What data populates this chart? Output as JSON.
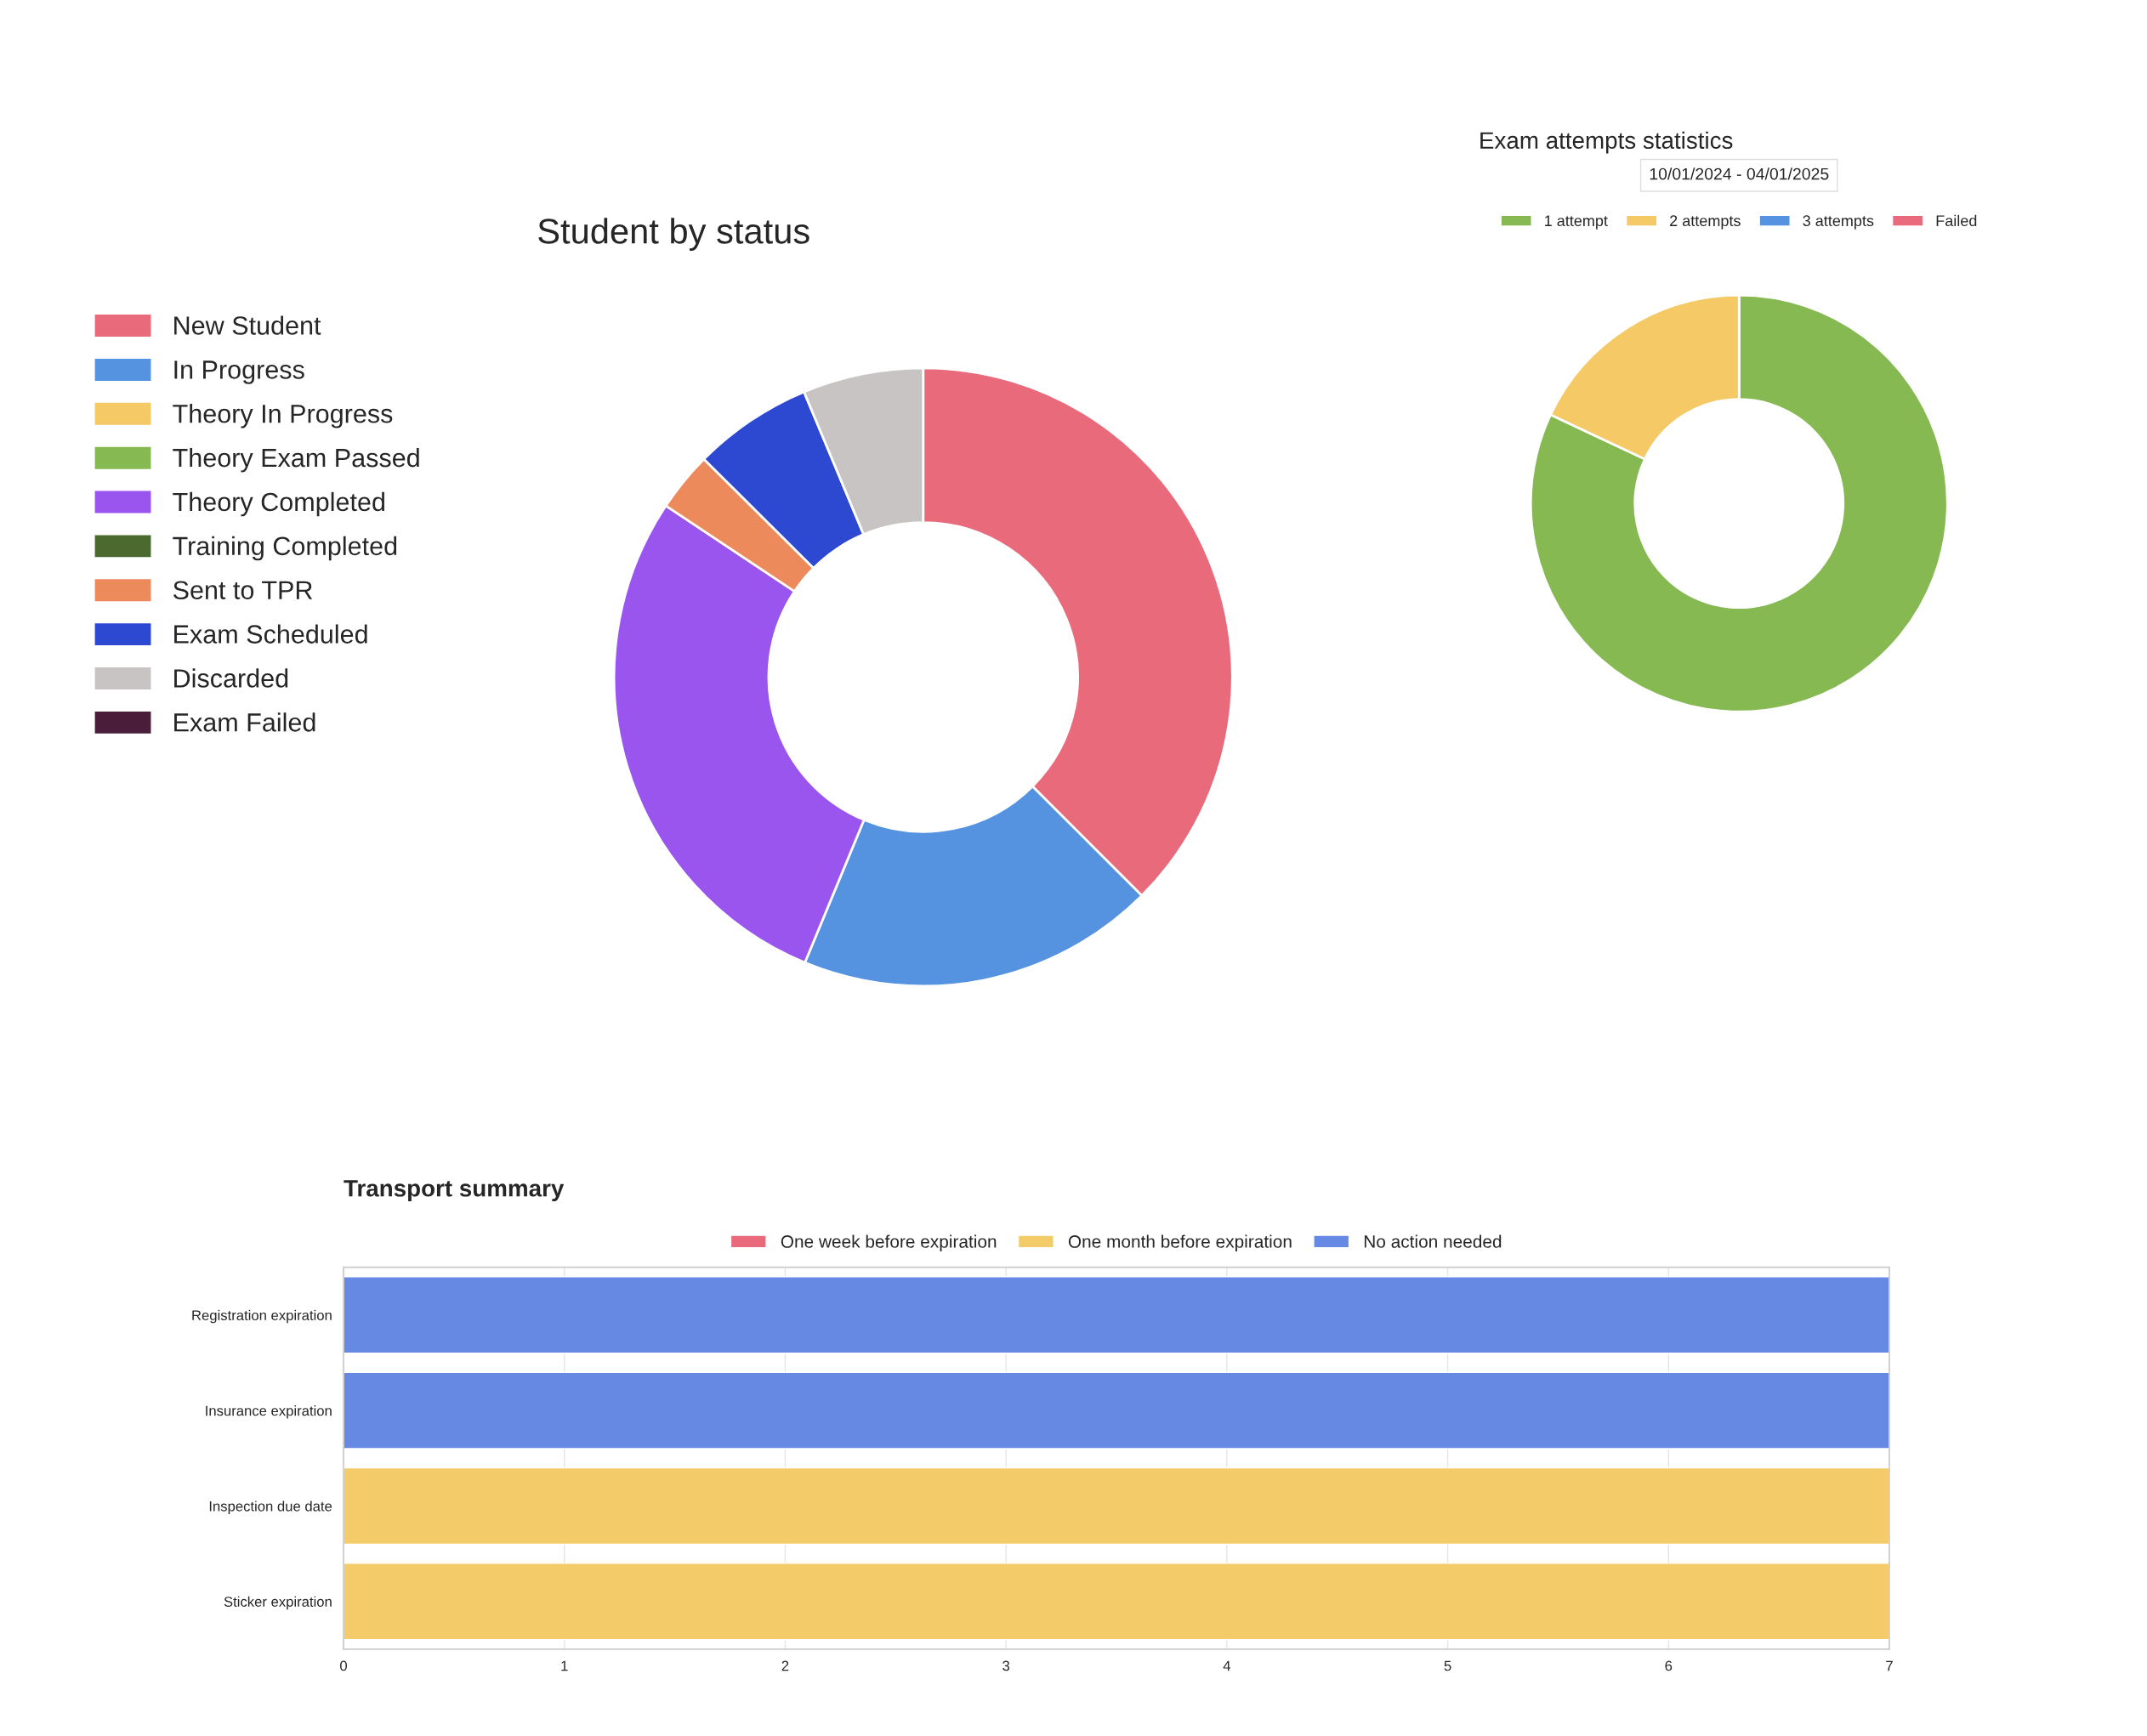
{
  "chart_data": [
    {
      "type": "donut",
      "title": "Student by status",
      "legend": "left",
      "categories": [
        "New Student",
        "In Progress",
        "Theory In Progress",
        "Theory Exam Passed",
        "Theory Completed",
        "Training Completed",
        "Sent to TPR",
        "Exam Scheduled",
        "Discarded",
        "Exam Failed"
      ],
      "values": [
        37.5,
        18.75,
        null,
        null,
        28.1,
        null,
        3.1,
        6.25,
        6.3,
        null
      ],
      "colors": [
        "#e96a7b",
        "#5593e0",
        "#f4c966",
        "#86b951",
        "#9b55ef",
        "#4a6a2f",
        "#ec8a5c",
        "#2d48d1",
        "#c8c4c4",
        "#4a1e3a"
      ]
    },
    {
      "type": "donut",
      "title": "Exam attempts statistics",
      "subtitle": "10/01/2024 - 04/01/2025",
      "legend": "top",
      "categories": [
        "1 attempt",
        "2 attempts",
        "3 attempts",
        "Failed"
      ],
      "values": [
        82,
        18,
        null,
        null
      ],
      "colors": [
        "#86b951",
        "#f4c966",
        "#5593e0",
        "#e96a7b"
      ]
    },
    {
      "type": "bar",
      "title": "Transport summary",
      "orientation": "horizontal",
      "legend": "top",
      "grid": true,
      "categories": [
        "Registration expiration",
        "Insurance expiration",
        "Inspection due date",
        "Sticker expiration"
      ],
      "series": [
        {
          "name": "One week before expiration",
          "color": "#e96a7b",
          "values": [
            null,
            null,
            null,
            null
          ]
        },
        {
          "name": "One month before expiration",
          "color": "#f3cb68",
          "values": [
            null,
            null,
            7,
            7
          ]
        },
        {
          "name": "No action needed",
          "color": "#6689e4",
          "values": [
            7,
            7,
            null,
            null
          ]
        }
      ],
      "xlim": [
        0,
        7
      ],
      "xticks": [
        0,
        1,
        2,
        3,
        4,
        5,
        6,
        7
      ]
    }
  ]
}
